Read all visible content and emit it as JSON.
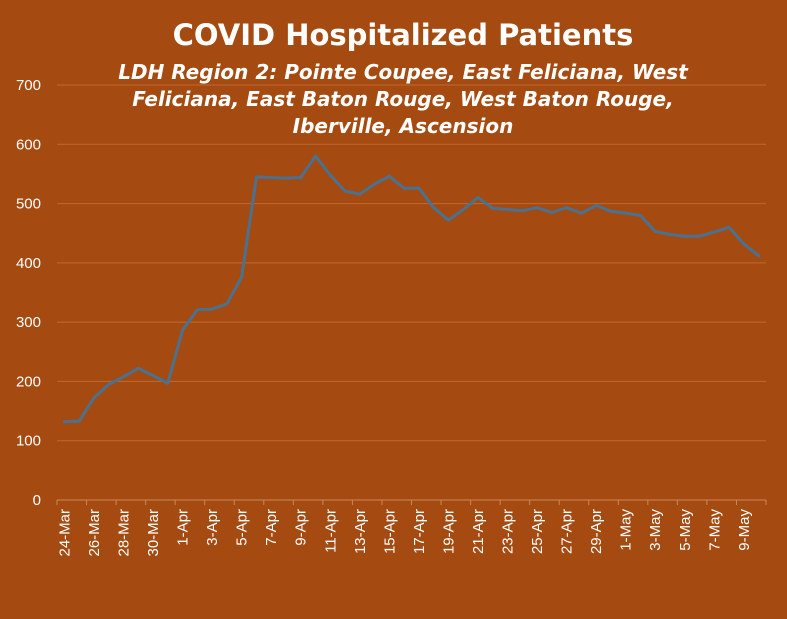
{
  "chart_data": {
    "type": "line",
    "title": "COVID Hospitalized Patients",
    "subtitle_lines": [
      "LDH Region 2: Pointe Coupee, East Feliciana, West",
      "Feliciana, East Baton Rouge, West Baton Rouge,",
      "Iberville, Ascension"
    ],
    "xlabel": "",
    "ylabel": "",
    "ylim": [
      0,
      700
    ],
    "yticks": [
      "0",
      "100",
      "200",
      "300",
      "400",
      "500",
      "600",
      "700"
    ],
    "grid": "horizontal",
    "legend": "none",
    "x_tick_labels": [
      "24-Mar",
      "26-Mar",
      "28-Mar",
      "30-Mar",
      "1-Apr",
      "3-Apr",
      "5-Apr",
      "7-Apr",
      "9-Apr",
      "11-Apr",
      "13-Apr",
      "15-Apr",
      "17-Apr",
      "19-Apr",
      "21-Apr",
      "23-Apr",
      "25-Apr",
      "27-Apr",
      "29-Apr",
      "1-May",
      "3-May",
      "5-May",
      "7-May",
      "9-May"
    ],
    "x": [
      "24-Mar",
      "25-Mar",
      "26-Mar",
      "27-Mar",
      "28-Mar",
      "29-Mar",
      "30-Mar",
      "31-Mar",
      "1-Apr",
      "2-Apr",
      "3-Apr",
      "4-Apr",
      "5-Apr",
      "6-Apr",
      "7-Apr",
      "8-Apr",
      "9-Apr",
      "10-Apr",
      "11-Apr",
      "12-Apr",
      "13-Apr",
      "14-Apr",
      "15-Apr",
      "16-Apr",
      "17-Apr",
      "18-Apr",
      "19-Apr",
      "20-Apr",
      "21-Apr",
      "22-Apr",
      "23-Apr",
      "24-Apr",
      "25-Apr",
      "26-Apr",
      "27-Apr",
      "28-Apr",
      "29-Apr",
      "30-Apr",
      "1-May",
      "2-May",
      "3-May",
      "4-May",
      "5-May",
      "6-May",
      "7-May",
      "8-May",
      "9-May",
      "10-May"
    ],
    "series": [
      {
        "values": [
          132,
          133,
          172,
          195,
          208,
          222,
          210,
          197,
          287,
          321,
          322,
          331,
          376,
          545,
          544,
          543,
          544,
          580,
          548,
          521,
          516,
          533,
          546,
          526,
          526,
          493,
          472,
          490,
          510,
          492,
          490,
          488,
          493,
          485,
          493,
          484,
          497,
          487,
          484,
          480,
          453,
          448,
          445,
          445,
          452,
          460,
          432,
          412
        ]
      }
    ],
    "colors": {
      "background": "#a54a10",
      "line": "#4a7290",
      "gridline": "#bf6a33",
      "axis": "#c98a5c",
      "text": "#ffffff"
    }
  }
}
